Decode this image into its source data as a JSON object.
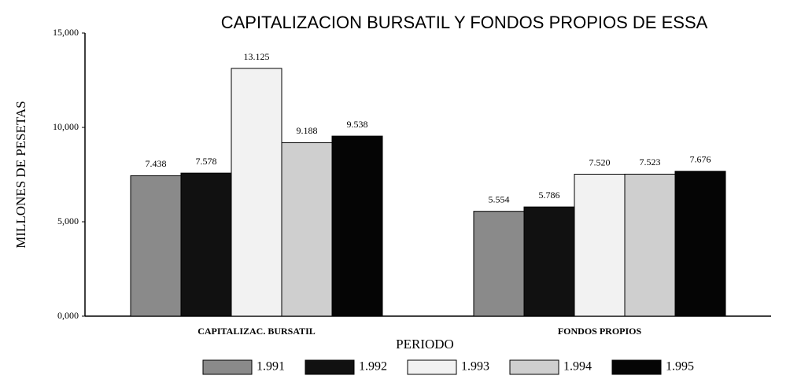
{
  "chart_data": {
    "type": "bar",
    "title": "CAPITALIZACION BURSATIL Y FONDOS PROPIOS DE ESSA",
    "y_label": "MILLONES DE PESETAS",
    "x_label": "PERIODO",
    "categories": [
      "CAPITALIZAC. BURSATIL",
      "FONDOS PROPIOS"
    ],
    "series": [
      {
        "name": "1.991",
        "color": "#8a8a8a",
        "values": [
          7438,
          5554
        ],
        "value_labels": [
          "7.438",
          "5.554"
        ]
      },
      {
        "name": "1.992",
        "color": "#111111",
        "values": [
          7578,
          5786
        ],
        "value_labels": [
          "7.578",
          "5.786"
        ]
      },
      {
        "name": "1.993",
        "color": "#f2f2f2",
        "values": [
          13125,
          7520
        ],
        "value_labels": [
          "13.125",
          "7.520"
        ]
      },
      {
        "name": "1.994",
        "color": "#cfcfcf",
        "values": [
          9188,
          7523
        ],
        "value_labels": [
          "9.188",
          "7.523"
        ]
      },
      {
        "name": "1.995",
        "color": "#050505",
        "values": [
          9538,
          7676
        ],
        "value_labels": [
          "9.538",
          "7.676"
        ]
      }
    ],
    "ylim": [
      0,
      15000
    ],
    "yticks": [
      {
        "value": 0,
        "label": "0,000"
      },
      {
        "value": 5000,
        "label": "5,000"
      },
      {
        "value": 10000,
        "label": "10,000"
      },
      {
        "value": 15000,
        "label": "15,000"
      }
    ],
    "grid": false,
    "legend": "bottom"
  }
}
